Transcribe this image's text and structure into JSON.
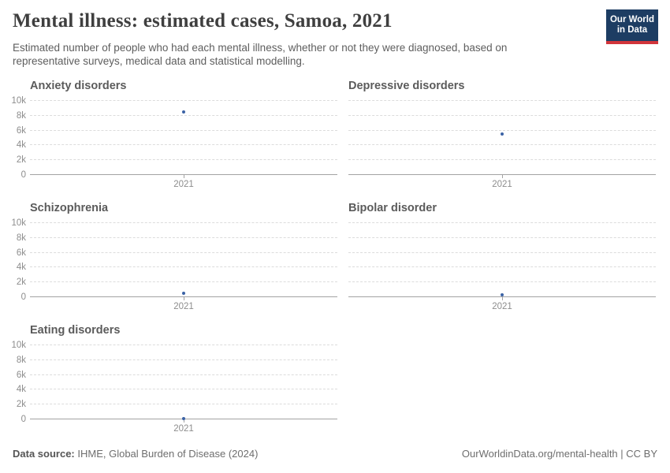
{
  "header": {
    "title": "Mental illness: estimated cases, Samoa, 2021",
    "subtitle": "Estimated number of people who had each mental illness, whether or not they were diagnosed, based on representative surveys, medical data and statistical modelling.",
    "logo": {
      "line1": "Our World",
      "line2": "in Data",
      "bg_color": "#1d3d63",
      "accent_color": "#d1353b"
    }
  },
  "chart_data": [
    {
      "type": "scatter",
      "title": "Anxiety disorders",
      "x": [
        "2021"
      ],
      "values": [
        8500
      ],
      "ylim": [
        0,
        10000
      ],
      "y_ticks": [
        "0",
        "2k",
        "4k",
        "6k",
        "8k",
        "10k"
      ],
      "show_y_axis": true,
      "grid": true,
      "point_color": "#3b62a5"
    },
    {
      "type": "scatter",
      "title": "Depressive disorders",
      "x": [
        "2021"
      ],
      "values": [
        5500
      ],
      "ylim": [
        0,
        10000
      ],
      "y_ticks": [
        "0",
        "2k",
        "4k",
        "6k",
        "8k",
        "10k"
      ],
      "show_y_axis": false,
      "grid": true,
      "point_color": "#3b62a5"
    },
    {
      "type": "scatter",
      "title": "Schizophrenia",
      "x": [
        "2021"
      ],
      "values": [
        500
      ],
      "ylim": [
        0,
        10000
      ],
      "y_ticks": [
        "0",
        "2k",
        "4k",
        "6k",
        "8k",
        "10k"
      ],
      "show_y_axis": true,
      "grid": true,
      "point_color": "#3b62a5"
    },
    {
      "type": "scatter",
      "title": "Bipolar disorder",
      "x": [
        "2021"
      ],
      "values": [
        350
      ],
      "ylim": [
        0,
        10000
      ],
      "y_ticks": [
        "0",
        "2k",
        "4k",
        "6k",
        "8k",
        "10k"
      ],
      "show_y_axis": false,
      "grid": true,
      "point_color": "#3b62a5"
    },
    {
      "type": "scatter",
      "title": "Eating disorders",
      "x": [
        "2021"
      ],
      "values": [
        150
      ],
      "ylim": [
        0,
        10000
      ],
      "y_ticks": [
        "0",
        "2k",
        "4k",
        "6k",
        "8k",
        "10k"
      ],
      "show_y_axis": true,
      "grid": true,
      "point_color": "#3b62a5"
    }
  ],
  "footer": {
    "data_source_label": "Data source:",
    "data_source_value": "IHME, Global Burden of Disease (2024)",
    "attribution": "OurWorldinData.org/mental-health | CC BY"
  }
}
